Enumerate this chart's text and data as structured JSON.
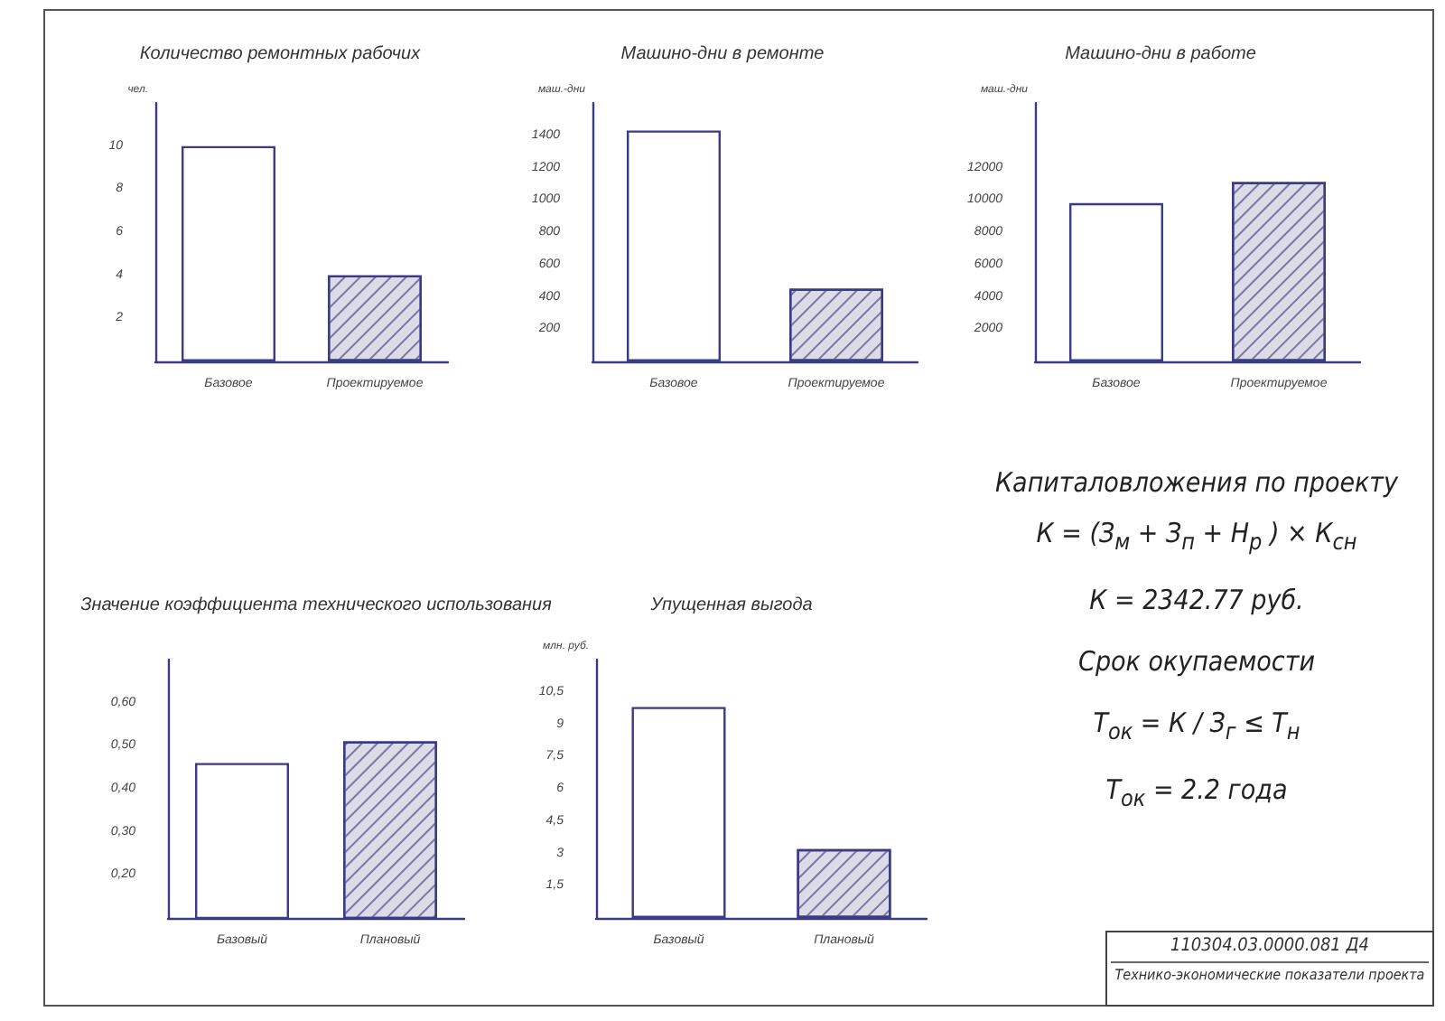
{
  "chart_data": [
    {
      "type": "bar",
      "title": "Количество ремонтных рабочих",
      "ylabel": "чел.",
      "categories": [
        "Базовое",
        "Проектируемое"
      ],
      "values": [
        10,
        4
      ],
      "colors": [
        "#ffffff",
        "#dcdce8"
      ],
      "ylim": [
        0,
        12
      ],
      "yticks": [
        2,
        4,
        6,
        8,
        10
      ]
    },
    {
      "type": "bar",
      "title": "Машино-дни в ремонте",
      "ylabel": "маш.-дни",
      "categories": [
        "Базовое",
        "Проектируемое"
      ],
      "values": [
        1430,
        450
      ],
      "colors": [
        "#ffffff",
        "#dcdce8"
      ],
      "ylim": [
        0,
        1600
      ],
      "yticks": [
        200,
        400,
        600,
        800,
        1000,
        1200,
        1400
      ]
    },
    {
      "type": "bar",
      "title": "Машино-дни в работе",
      "ylabel": "маш.-дни",
      "categories": [
        "Базовое",
        "Проектируемое"
      ],
      "values": [
        9800,
        11100
      ],
      "colors": [
        "#ffffff",
        "#dcdce8"
      ],
      "ylim": [
        0,
        16000
      ],
      "yticks": [
        2000,
        4000,
        6000,
        8000,
        10000,
        12000
      ]
    },
    {
      "type": "bar",
      "title": "Значение коэффициента технического использования",
      "categories": [
        "Базовый",
        "Плановый"
      ],
      "values": [
        0.46,
        0.51
      ],
      "colors": [
        "#ffffff",
        "#dcdce8"
      ],
      "ylim": [
        0.1,
        0.7
      ],
      "yticks": [
        {
          "value": 0.2,
          "label": "0,20"
        },
        {
          "value": 0.3,
          "label": "0,30"
        },
        {
          "value": 0.4,
          "label": "0,40"
        },
        {
          "value": 0.5,
          "label": "0,50"
        },
        {
          "value": 0.6,
          "label": "0,60"
        }
      ]
    },
    {
      "type": "bar",
      "title": "Упущенная выгода",
      "ylabel": "млн. руб.",
      "categories": [
        "Базовый",
        "Плановый"
      ],
      "values": [
        9.8,
        3.2
      ],
      "colors": [
        "#ffffff",
        "#dcdce8"
      ],
      "ylim": [
        0,
        12
      ],
      "yticks": [
        {
          "value": 1.5,
          "label": "1,5"
        },
        3,
        {
          "value": 4.5,
          "label": "4,5"
        },
        6,
        {
          "value": 7.5,
          "label": "7,5"
        },
        9,
        {
          "value": 10.5,
          "label": "10,5"
        }
      ]
    },
    {
      "type": "other",
      "title": "Капиталовложения по проекту",
      "annotations": [
        "К = (З$_{м}$ + З$_{п}$ + Н$_{р}$ ) × К$_{сн}$",
        "К = 2342.77 руб.",
        "Срок окупаемости",
        "Т$_{ок}$ = К / З$_{г}$ ≤ Т$_{н}$",
        "Т$_{ок}$ = 2.2 года"
      ]
    },
    {
      "type": "other",
      "annotations": [
        "110304.03.0000.081 Д4",
        "Технико-экономические показатели проекта"
      ]
    }
  ]
}
